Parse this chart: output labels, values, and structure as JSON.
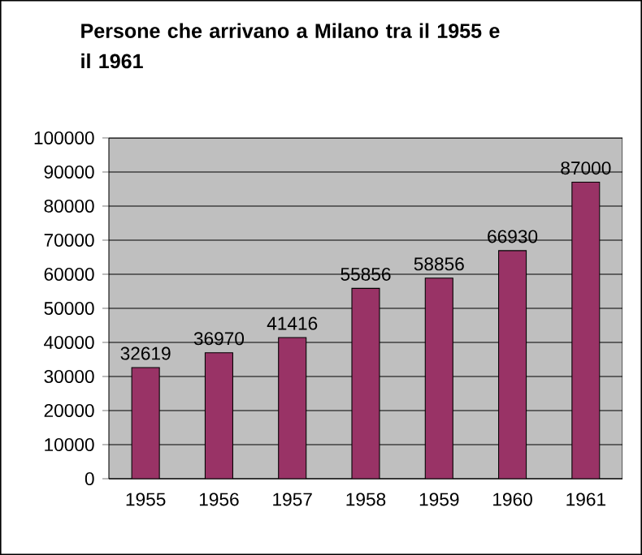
{
  "chart_data": {
    "type": "bar",
    "title": "Persone che arrivano a Milano tra il 1955 e il 1961",
    "categories": [
      "1955",
      "1956",
      "1957",
      "1958",
      "1959",
      "1960",
      "1961"
    ],
    "values": [
      32619,
      36970,
      41416,
      55856,
      58856,
      66930,
      87000
    ],
    "color": "#993366",
    "ylim": [
      0,
      100000
    ],
    "yticks": [
      0,
      10000,
      20000,
      30000,
      40000,
      50000,
      60000,
      70000,
      80000,
      90000,
      100000
    ],
    "grid": "y",
    "data_labels": true
  }
}
